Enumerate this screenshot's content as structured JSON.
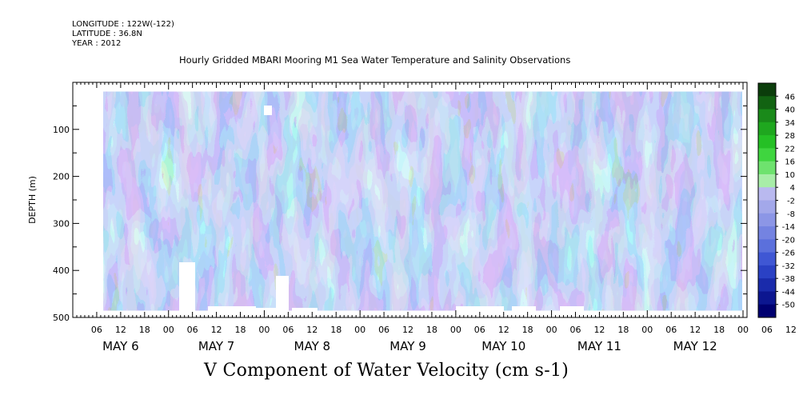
{
  "header": {
    "longitude": "LONGITUDE : 122W(-122)",
    "latitude": "LATITUDE : 36.8N",
    "year": "YEAR : 2012"
  },
  "title": "Hourly Gridded MBARI Mooring M1 Sea Water Temperature and Salinity Observations",
  "variable_title": "V Component of Water Velocity (cm s-1)",
  "chart_data": {
    "type": "heatmap",
    "title": "Hourly Gridded MBARI Mooring M1 Sea Water Temperature and Salinity Observations",
    "xlabel": "",
    "ylabel": "DEPTH (m)",
    "units": "cm s-1",
    "y_axis": {
      "range": [
        0,
        500
      ],
      "ticks": [
        100,
        200,
        300,
        400,
        500
      ],
      "reversed": true
    },
    "x_axis": {
      "hour_ticks": [
        "06",
        "12",
        "18",
        "00",
        "06",
        "12",
        "18",
        "00",
        "06",
        "12",
        "18",
        "00",
        "06",
        "12",
        "18",
        "00",
        "06",
        "12",
        "18",
        "00",
        "06",
        "12",
        "18",
        "00",
        "06",
        "12",
        "18",
        "00",
        "06",
        "12",
        "18",
        "00"
      ],
      "day_labels": [
        "MAY  6",
        "MAY  7",
        "MAY  8",
        "MAY  9",
        "MAY 10",
        "MAY 11",
        "MAY 12"
      ]
    },
    "colorbar": {
      "levels": [
        46,
        40,
        34,
        28,
        22,
        16,
        10,
        4,
        -2,
        -8,
        -14,
        -20,
        -26,
        -32,
        -38,
        -44,
        -50
      ],
      "colors": [
        "#0b3d0b",
        "#126312",
        "#1a8a1a",
        "#1fa71f",
        "#25c025",
        "#3fd53f",
        "#6ee26e",
        "#a8eda8",
        "#b9b9ef",
        "#a3a8ea",
        "#8c96e6",
        "#7483e1",
        "#5b70dc",
        "#3f57d4",
        "#2a41c4",
        "#1a2bab",
        "#0c1690",
        "#000070"
      ]
    },
    "data_note_depth_coverage": "data between ~20 m and ~485 m depth"
  }
}
